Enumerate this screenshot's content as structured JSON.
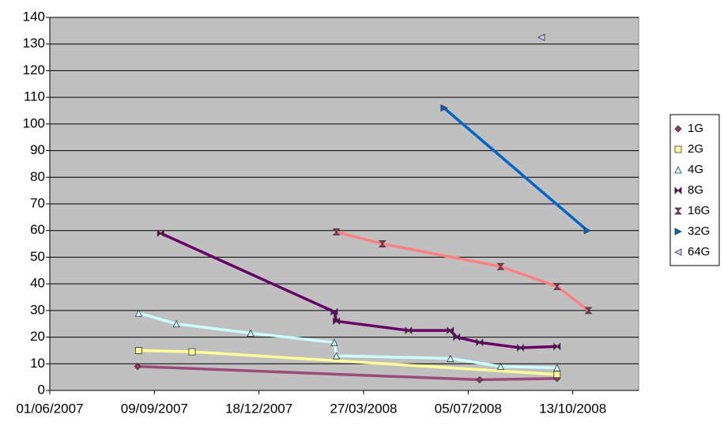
{
  "chart_data": {
    "type": "line",
    "xlim": [
      "01/06/2007",
      "15/12/2008"
    ],
    "xticks": [
      "01/06/2007",
      "09/09/2007",
      "18/12/2007",
      "27/03/2008",
      "05/07/2008",
      "13/10/2008"
    ],
    "ylim": [
      0,
      140
    ],
    "yticks": [
      0,
      10,
      20,
      30,
      40,
      50,
      60,
      70,
      80,
      90,
      100,
      110,
      120,
      130,
      140
    ],
    "grid": true,
    "legend": "right",
    "series": [
      {
        "name": "1G",
        "color": "#9c4a7a",
        "marker": "diamond",
        "marker_color": "#993366",
        "line": true,
        "x": [
          "24/08/2007",
          "16/07/2008",
          "28/09/2008"
        ],
        "values": [
          9,
          4,
          4.5
        ]
      },
      {
        "name": "2G",
        "color": "#ffff99",
        "marker": "square",
        "marker_color": "#ffff99",
        "line": true,
        "x": [
          "25/08/2007",
          "15/10/2007",
          "28/09/2008"
        ],
        "values": [
          15,
          14.5,
          6
        ]
      },
      {
        "name": "4G",
        "color": "#ccffff",
        "marker": "triangle",
        "marker_color": "#ccffff",
        "line": true,
        "x": [
          "25/08/2007",
          "30/09/2007",
          "10/12/2007",
          "28/02/2008",
          "01/03/2008",
          "18/06/2008",
          "05/08/2008",
          "28/09/2008"
        ],
        "values": [
          29,
          25,
          21.5,
          18,
          13,
          12,
          9,
          8.5
        ]
      },
      {
        "name": "8G",
        "color": "#660066",
        "marker": "bowtie",
        "marker_color": "#660066",
        "line": true,
        "x": [
          "15/09/2007",
          "28/02/2008",
          "01/03/2008",
          "09/05/2008",
          "18/06/2008",
          "24/06/2008",
          "16/07/2008",
          "24/08/2008",
          "28/09/2008"
        ],
        "values": [
          59,
          29.5,
          26,
          22.5,
          22.5,
          20,
          18,
          16,
          16.5
        ]
      },
      {
        "name": "16G",
        "color": "#ff8080",
        "marker": "hourglass",
        "marker_color": "#993366",
        "line": true,
        "x": [
          "01/03/2008",
          "14/04/2008",
          "05/08/2008",
          "28/09/2008",
          "28/10/2008"
        ],
        "values": [
          59.5,
          55,
          46.5,
          39,
          30
        ]
      },
      {
        "name": "32G",
        "color": "#0066cc",
        "marker": "triangle-right",
        "marker_color": "#0066cc",
        "line": true,
        "x": [
          "12/06/2008",
          "27/10/2008"
        ],
        "values": [
          106,
          60
        ]
      },
      {
        "name": "64G",
        "color": "#666699",
        "marker": "triangle-left",
        "marker_color": "#ccccff",
        "line": false,
        "x": [
          "13/09/2008"
        ],
        "values": [
          132.5
        ]
      }
    ]
  }
}
